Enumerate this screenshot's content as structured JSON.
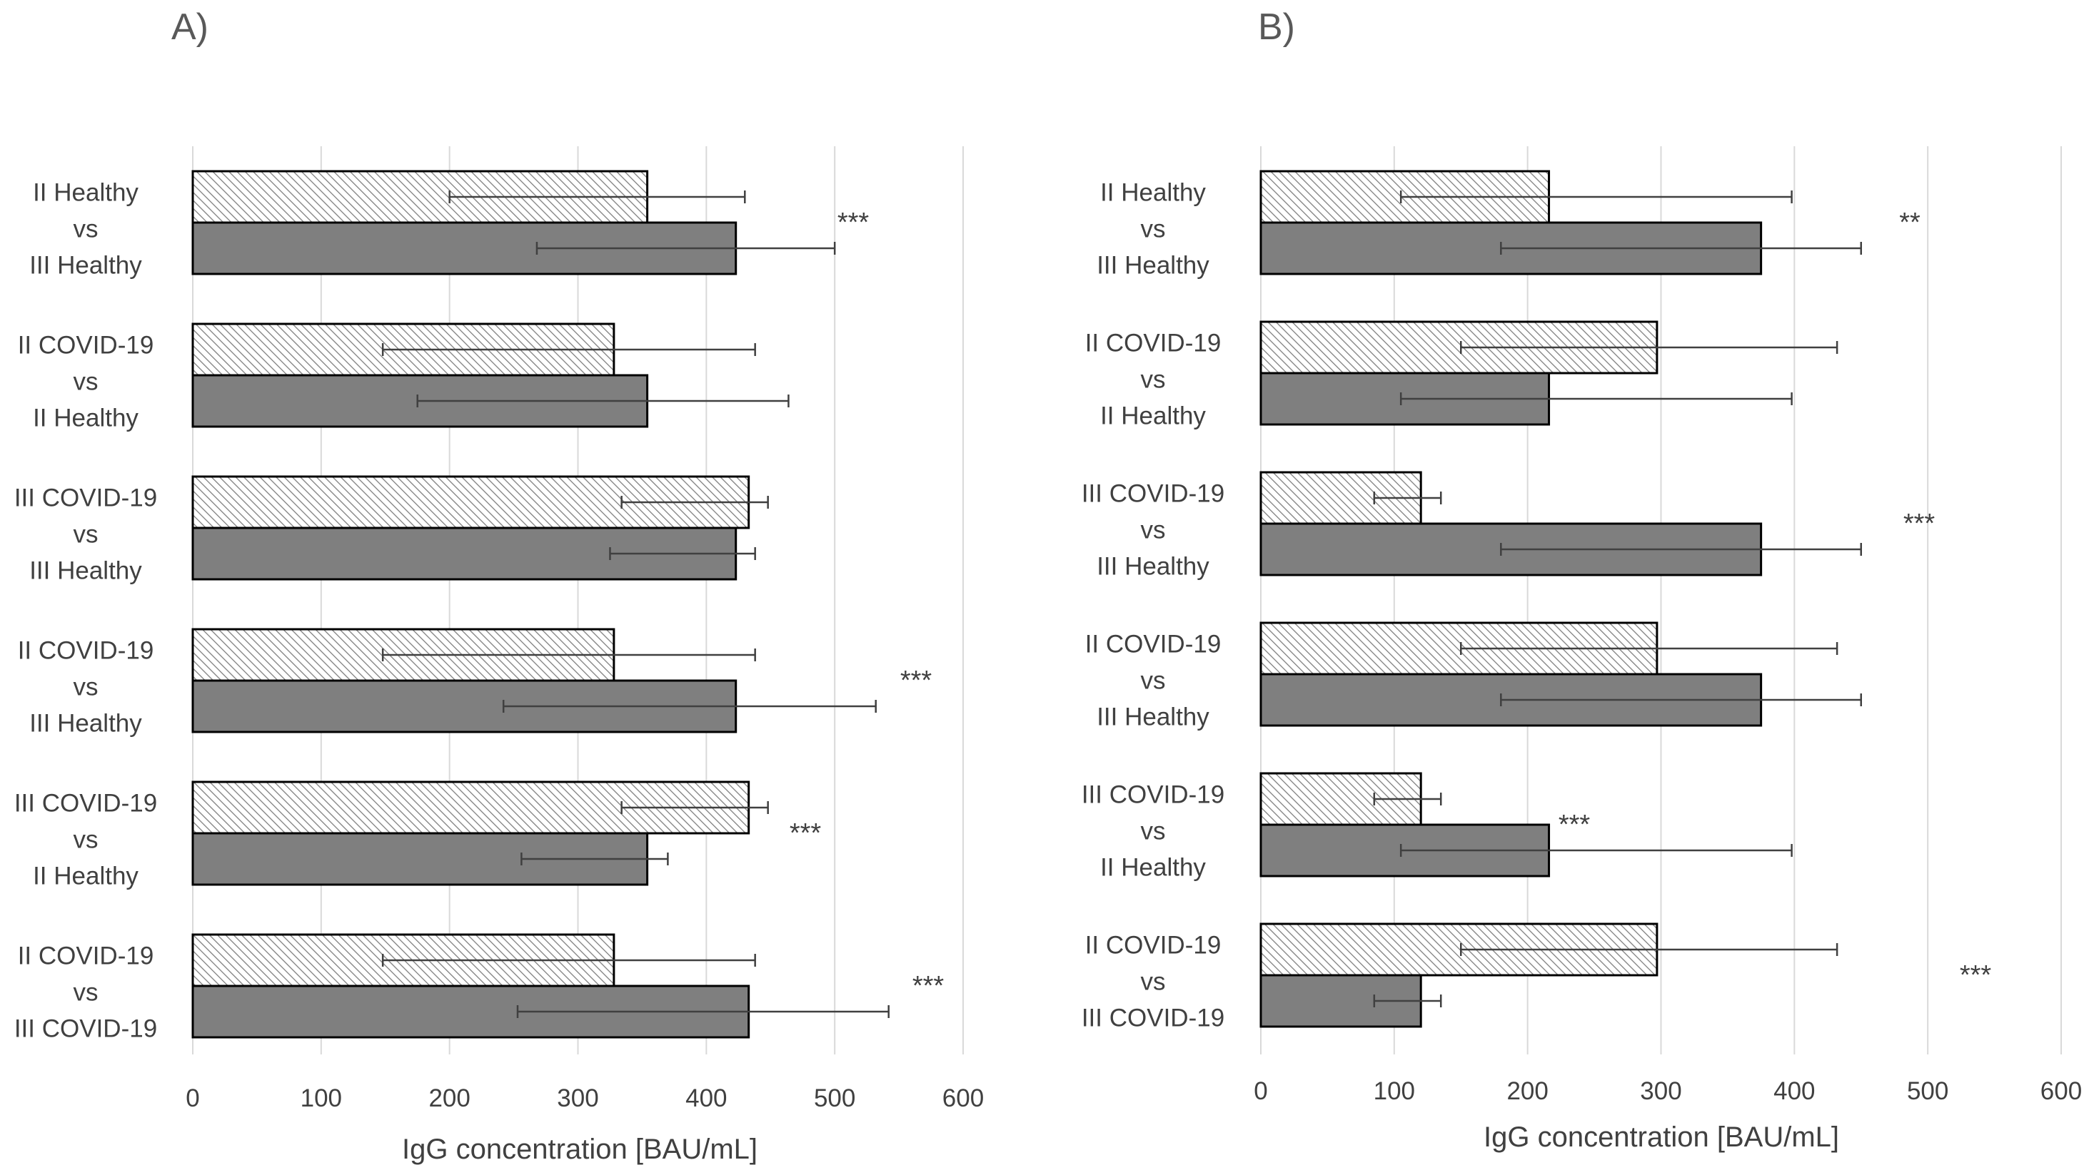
{
  "chart_data": [
    {
      "type": "bar",
      "orientation": "horizontal",
      "panel": "A)",
      "xlabel": "IgG concentration [BAU/mL]",
      "xlim": [
        0,
        600
      ],
      "xticks": [
        "0",
        "100",
        "200",
        "300",
        "400",
        "500",
        "600"
      ],
      "grid": true,
      "groups": [
        {
          "label": [
            "II Healthy",
            "vs",
            "III Healthy"
          ],
          "bars": [
            {
              "style": "hatched",
              "value": 354,
              "err_low": 200,
              "err_high": 430
            },
            {
              "style": "solid",
              "value": 423,
              "err_low": 268,
              "err_high": 500
            }
          ],
          "significance": "***"
        },
        {
          "label": [
            "II COVID-19",
            "vs",
            "II Healthy"
          ],
          "bars": [
            {
              "style": "hatched",
              "value": 328,
              "err_low": 148,
              "err_high": 438
            },
            {
              "style": "solid",
              "value": 354,
              "err_low": 175,
              "err_high": 464
            }
          ],
          "significance": ""
        },
        {
          "label": [
            "III COVID-19",
            "vs",
            "III Healthy"
          ],
          "bars": [
            {
              "style": "hatched",
              "value": 433,
              "err_low": 334,
              "err_high": 448
            },
            {
              "style": "solid",
              "value": 423,
              "err_low": 325,
              "err_high": 438
            }
          ],
          "significance": ""
        },
        {
          "label": [
            "II COVID-19",
            "vs",
            "III Healthy"
          ],
          "bars": [
            {
              "style": "hatched",
              "value": 328,
              "err_low": 148,
              "err_high": 438
            },
            {
              "style": "solid",
              "value": 423,
              "err_low": 242,
              "err_high": 532
            }
          ],
          "significance": "***"
        },
        {
          "label": [
            "III COVID-19",
            "vs",
            "II Healthy"
          ],
          "bars": [
            {
              "style": "hatched",
              "value": 433,
              "err_low": 334,
              "err_high": 448
            },
            {
              "style": "solid",
              "value": 354,
              "err_low": 256,
              "err_high": 370
            }
          ],
          "significance": "***"
        },
        {
          "label": [
            "II COVID-19",
            "vs",
            "III COVID-19"
          ],
          "bars": [
            {
              "style": "hatched",
              "value": 328,
              "err_low": 148,
              "err_high": 438
            },
            {
              "style": "solid",
              "value": 433,
              "err_low": 253,
              "err_high": 542
            }
          ],
          "significance": "***"
        }
      ]
    },
    {
      "type": "bar",
      "orientation": "horizontal",
      "panel": "B)",
      "xlabel": "IgG concentration [BAU/mL]",
      "xlim": [
        0,
        600
      ],
      "xticks": [
        "0",
        "100",
        "200",
        "300",
        "400",
        "500",
        "600"
      ],
      "grid": true,
      "groups": [
        {
          "label": [
            "II Healthy",
            "vs",
            "III Healthy"
          ],
          "bars": [
            {
              "style": "hatched",
              "value": 216,
              "err_low": 105,
              "err_high": 398
            },
            {
              "style": "solid",
              "value": 375,
              "err_low": 180,
              "err_high": 450
            }
          ],
          "significance": "**"
        },
        {
          "label": [
            "II COVID-19",
            "vs",
            "II Healthy"
          ],
          "bars": [
            {
              "style": "hatched",
              "value": 297,
              "err_low": 150,
              "err_high": 432
            },
            {
              "style": "solid",
              "value": 216,
              "err_low": 105,
              "err_high": 398
            }
          ],
          "significance": ""
        },
        {
          "label": [
            "III COVID-19",
            "vs",
            "III Healthy"
          ],
          "bars": [
            {
              "style": "hatched",
              "value": 120,
              "err_low": 85,
              "err_high": 135
            },
            {
              "style": "solid",
              "value": 375,
              "err_low": 180,
              "err_high": 450
            }
          ],
          "significance": "***"
        },
        {
          "label": [
            "II COVID-19",
            "vs",
            "III Healthy"
          ],
          "bars": [
            {
              "style": "hatched",
              "value": 297,
              "err_low": 150,
              "err_high": 432
            },
            {
              "style": "solid",
              "value": 375,
              "err_low": 180,
              "err_high": 450
            }
          ],
          "significance": ""
        },
        {
          "label": [
            "III COVID-19",
            "vs",
            "II Healthy"
          ],
          "bars": [
            {
              "style": "hatched",
              "value": 120,
              "err_low": 85,
              "err_high": 135
            },
            {
              "style": "solid",
              "value": 216,
              "err_low": 105,
              "err_high": 398
            }
          ],
          "significance": "***"
        },
        {
          "label": [
            "II COVID-19",
            "vs",
            "III COVID-19"
          ],
          "bars": [
            {
              "style": "hatched",
              "value": 297,
              "err_low": 150,
              "err_high": 432
            },
            {
              "style": "solid",
              "value": 120,
              "err_low": 85,
              "err_high": 135
            }
          ],
          "significance": "***"
        }
      ]
    }
  ]
}
